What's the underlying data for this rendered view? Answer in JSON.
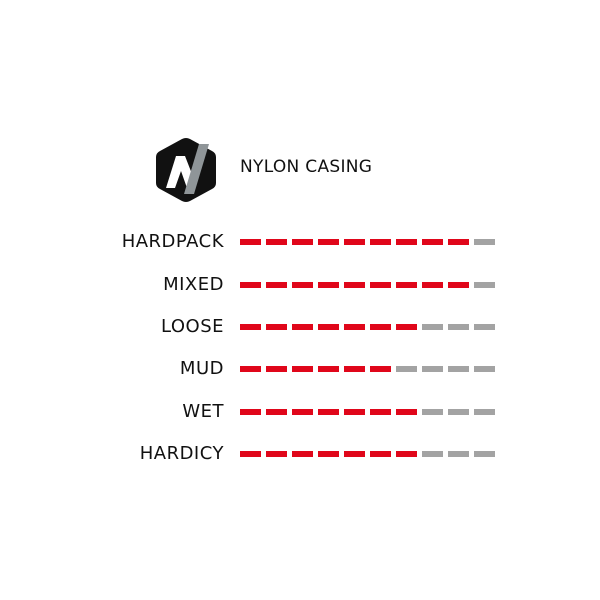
{
  "header": {
    "casing_label": "NYLON CASING",
    "logo_icon": "hexagon-n-logo-icon"
  },
  "colors": {
    "filled": "#e0061a",
    "empty": "#a3a3a3",
    "logo_bg": "#111111",
    "logo_slash": "#8f9598"
  },
  "scale_max": 10,
  "ratings": [
    {
      "label": "HARDPACK",
      "value": 9
    },
    {
      "label": "MIXED",
      "value": 9
    },
    {
      "label": "LOOSE",
      "value": 7
    },
    {
      "label": "MUD",
      "value": 6
    },
    {
      "label": "WET",
      "value": 7
    },
    {
      "label": "HARDICY",
      "value": 7
    }
  ]
}
